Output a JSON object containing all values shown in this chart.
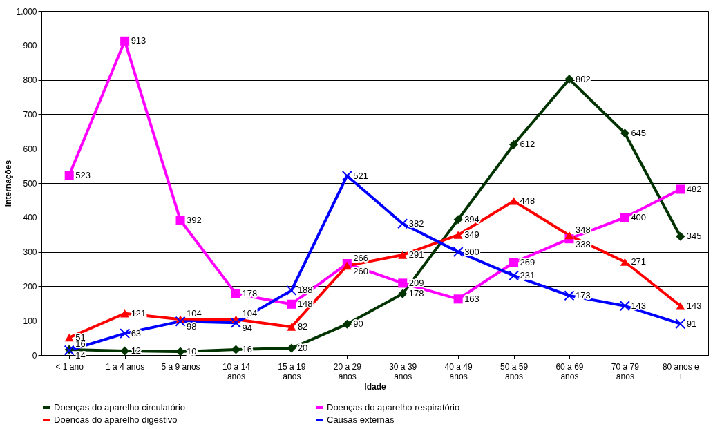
{
  "chart_data": {
    "type": "line",
    "xlabel": "Idade",
    "ylabel": "Internações",
    "categories": [
      "< 1 ano",
      "1 a 4 anos",
      "5 a 9 anos",
      "10 a 14 anos",
      "15 a 19 anos",
      "20 a 29 anos",
      "30 a 39 anos",
      "40 a 49 anos",
      "50 a 59 anos",
      "60 a 69 anos",
      "70 a 79 anos",
      "80 anos e +"
    ],
    "series": [
      {
        "name": "Doenças do aparelho circulatório",
        "color": "#003300",
        "marker": "diamond",
        "values": [
          16,
          12,
          10,
          16,
          20,
          90,
          178,
          394,
          612,
          802,
          645,
          345
        ]
      },
      {
        "name": "Doenças do aparelho respiratório",
        "color": "#ff00ff",
        "marker": "square",
        "values": [
          523,
          913,
          392,
          178,
          148,
          266,
          209,
          163,
          269,
          338,
          400,
          482
        ]
      },
      {
        "name": "Doencas do aparelho digestivo",
        "color": "#ff0000",
        "marker": "triangle",
        "values": [
          51,
          121,
          104,
          104,
          82,
          260,
          291,
          349,
          448,
          348,
          271,
          143
        ]
      },
      {
        "name": "Causas externas",
        "color": "#0000ff",
        "marker": "cross",
        "values": [
          14,
          63,
          98,
          94,
          188,
          521,
          382,
          300,
          231,
          173,
          143,
          91
        ]
      }
    ],
    "ylim": [
      0,
      1000
    ],
    "yticks": [
      0,
      100,
      200,
      300,
      400,
      500,
      600,
      700,
      800,
      900,
      {
        "value": 1000,
        "label": "1.000"
      }
    ],
    "grid": "y",
    "legend": "bottom",
    "data_labels": true,
    "line_style": "solid"
  }
}
